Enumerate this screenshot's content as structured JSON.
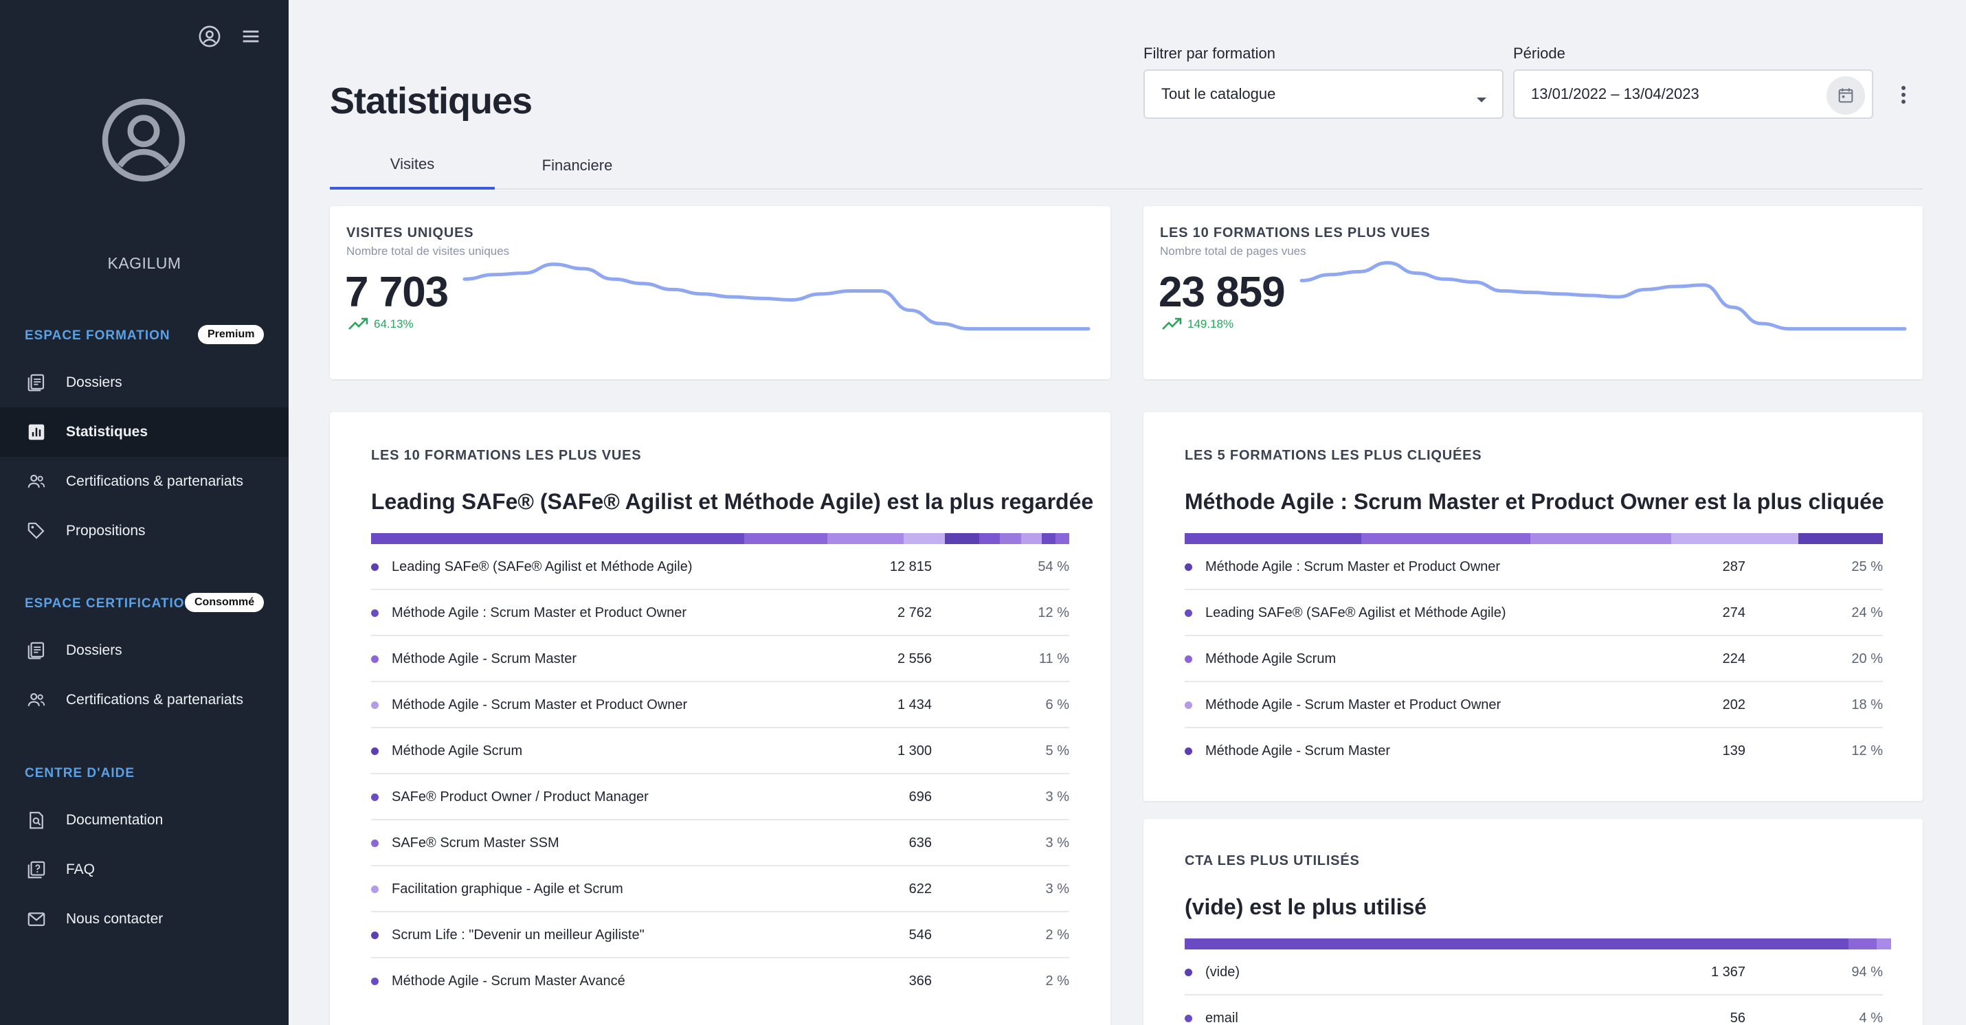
{
  "sidebar": {
    "company": "KAGILUM",
    "sections": [
      {
        "title": "ESPACE FORMATION",
        "badge": "Premium",
        "items": [
          {
            "label": "Dossiers"
          },
          {
            "label": "Statistiques"
          },
          {
            "label": "Certifications & partenariats"
          },
          {
            "label": "Propositions"
          }
        ]
      },
      {
        "title": "ESPACE CERTIFICATION",
        "badge": "Consommé",
        "items": [
          {
            "label": "Dossiers"
          },
          {
            "label": "Certifications & partenariats"
          }
        ]
      },
      {
        "title": "CENTRE D'AIDE",
        "items": [
          {
            "label": "Documentation"
          },
          {
            "label": "FAQ"
          },
          {
            "label": "Nous contacter"
          }
        ]
      }
    ]
  },
  "header": {
    "title": "Statistiques",
    "filter_label": "Filtrer par formation",
    "filter_value": "Tout le catalogue",
    "period_label": "Période",
    "period_value": "13/01/2022 – 13/04/2023"
  },
  "tabs": [
    {
      "label": "Visites"
    },
    {
      "label": "Financiere"
    }
  ],
  "kpis": [
    {
      "title": "VISITES UNIQUES",
      "subtitle": "Nombre total de visites uniques",
      "value": "7 703",
      "trend": "64.13%",
      "spark": [
        0.72,
        0.78,
        0.8,
        0.92,
        0.86,
        0.72,
        0.66,
        0.58,
        0.52,
        0.48,
        0.46,
        0.44,
        0.52,
        0.56,
        0.56,
        0.3,
        0.12,
        0.05,
        0.05,
        0.05,
        0.05,
        0.05
      ]
    },
    {
      "title": "LES 10 FORMATIONS LES PLUS VUES",
      "subtitle": "Nombre total de pages vues",
      "value": "23 859",
      "trend": "149.18%",
      "spark": [
        0.7,
        0.78,
        0.82,
        0.94,
        0.8,
        0.72,
        0.68,
        0.56,
        0.54,
        0.52,
        0.5,
        0.48,
        0.58,
        0.62,
        0.64,
        0.34,
        0.12,
        0.05,
        0.05,
        0.05,
        0.05,
        0.05
      ]
    }
  ],
  "most_viewed": {
    "title": "LES 10 FORMATIONS LES PLUS VUES",
    "headline": "Leading SAFe® (SAFe® Agilist et Méthode Agile) est la plus regardée",
    "rows": [
      {
        "name": "Leading SAFe® (SAFe® Agilist et Méthode Agile)",
        "value": "12 815",
        "pct": "54 %"
      },
      {
        "name": "Méthode Agile : Scrum Master et Product Owner",
        "value": "2 762",
        "pct": "12 %"
      },
      {
        "name": "Méthode Agile - Scrum Master",
        "value": "2 556",
        "pct": "11 %"
      },
      {
        "name": "Méthode Agile - Scrum Master et Product Owner",
        "value": "1 434",
        "pct": "6 %"
      },
      {
        "name": "Méthode Agile Scrum",
        "value": "1 300",
        "pct": "5 %"
      },
      {
        "name": "SAFe® Product Owner / Product Manager",
        "value": "696",
        "pct": "3 %"
      },
      {
        "name": "SAFe® Scrum Master SSM",
        "value": "636",
        "pct": "3 %"
      },
      {
        "name": "Facilitation graphique - Agile et Scrum",
        "value": "622",
        "pct": "3 %"
      },
      {
        "name": "Scrum Life : \"Devenir un meilleur Agiliste\"",
        "value": "546",
        "pct": "2 %"
      },
      {
        "name": "Méthode Agile - Scrum Master Avancé",
        "value": "366",
        "pct": "2 %"
      }
    ],
    "shares": [
      54,
      12,
      11,
      6,
      5,
      3,
      3,
      3,
      2,
      2
    ]
  },
  "most_clicked": {
    "title": "LES 5 FORMATIONS LES PLUS CLIQUÉES",
    "headline": "Méthode Agile : Scrum Master et Product Owner est la plus cliquée",
    "rows": [
      {
        "name": "Méthode Agile : Scrum Master et Product Owner",
        "value": "287",
        "pct": "25 %"
      },
      {
        "name": "Leading SAFe® (SAFe® Agilist et Méthode Agile)",
        "value": "274",
        "pct": "24 %"
      },
      {
        "name": "Méthode Agile Scrum",
        "value": "224",
        "pct": "20 %"
      },
      {
        "name": "Méthode Agile - Scrum Master et Product Owner",
        "value": "202",
        "pct": "18 %"
      },
      {
        "name": "Méthode Agile - Scrum Master",
        "value": "139",
        "pct": "12 %"
      }
    ],
    "shares": [
      25,
      24,
      20,
      18,
      12
    ]
  },
  "cta": {
    "title": "CTA LES PLUS UTILISÉS",
    "headline": "(vide) est le plus utilisé",
    "rows": [
      {
        "name": "(vide)",
        "value": "1 367",
        "pct": "94 %"
      },
      {
        "name": "email",
        "value": "56",
        "pct": "4 %"
      }
    ],
    "shares": [
      94,
      4,
      2
    ]
  },
  "palette": [
    "#6a4bc4",
    "#8a66d9",
    "#a98ae6",
    "#c4aff0",
    "#5b3fb3",
    "#7b58d0",
    "#9b7ae0",
    "#b9a0ea",
    "#6a4bc4",
    "#8a66d9"
  ],
  "dot_colors": [
    "#5b3fb3",
    "#6a4bc4",
    "#8a66d9",
    "#b49be8",
    "#5b3fb3",
    "#6a4bc4",
    "#8a66d9",
    "#b49be8",
    "#5b3fb3",
    "#6a4bc4"
  ]
}
